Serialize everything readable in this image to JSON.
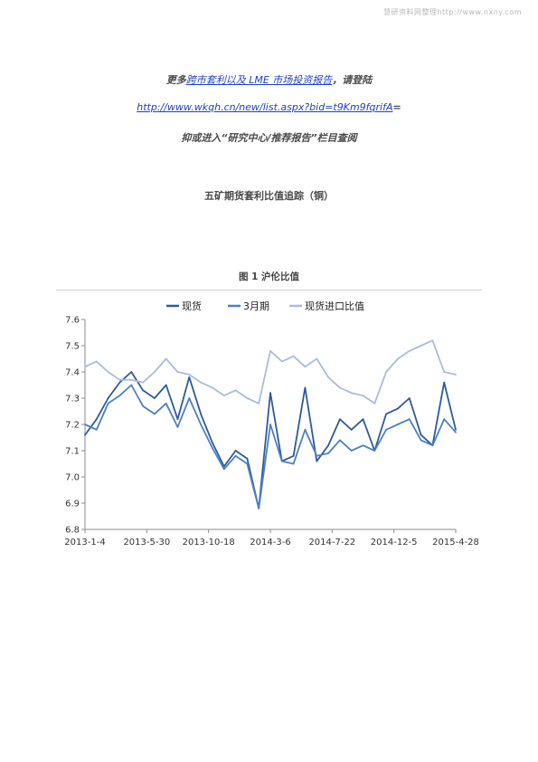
{
  "watermark": "慧研资料网整理http://www.nxny.com",
  "promo": {
    "line1_prefix": "更多",
    "line1_link": "跨市套利以及 LME 市场投资报告",
    "line1_suffix": "，请登陆",
    "line2_link": "http://www.wkqh.cn/new/list.aspx?bid=t9Km9fqrifA",
    "line2_suffix": "=",
    "line3": "抑或进入“研究中心/推荐报告”栏目查阅"
  },
  "section_title": "五矿期货套利比值追踪（铜）",
  "figure_caption": "图 1    沪伦比值",
  "colors": {
    "spot": "#2e5a9b",
    "three_month": "#4e7fc4",
    "import_ratio": "#a8bcdc",
    "link": "#1f3fc8"
  },
  "chart_data": {
    "type": "line",
    "title": "",
    "xlabel": "",
    "ylabel": "",
    "ylim": [
      6.8,
      7.6
    ],
    "yticks": [
      "7.6",
      "7.5",
      "7.4",
      "7.3",
      "7.2",
      "7.1",
      "7.0",
      "6.9",
      "6.8"
    ],
    "xticks": [
      "2013-1-4",
      "2013-5-30",
      "2013-10-18",
      "2014-3-6",
      "2014-7-22",
      "2014-12-5",
      "2015-4-28"
    ],
    "legend_position": "top",
    "x": [
      "2013-1-4",
      "2013-2-1",
      "2013-3-1",
      "2013-4-1",
      "2013-5-1",
      "2013-5-30",
      "2013-7-1",
      "2013-8-1",
      "2013-9-2",
      "2013-10-1",
      "2013-10-18",
      "2013-11-15",
      "2013-12-16",
      "2014-1-15",
      "2014-2-14",
      "2014-3-6",
      "2014-3-20",
      "2014-4-15",
      "2014-5-15",
      "2014-6-16",
      "2014-7-22",
      "2014-8-20",
      "2014-9-19",
      "2014-10-20",
      "2014-11-18",
      "2014-12-5",
      "2015-1-5",
      "2015-2-2",
      "2015-3-2",
      "2015-3-16",
      "2015-4-1",
      "2015-4-15",
      "2015-4-28"
    ],
    "series": [
      {
        "name": "现货",
        "values": [
          7.16,
          7.22,
          7.3,
          7.36,
          7.4,
          7.33,
          7.3,
          7.35,
          7.22,
          7.38,
          7.24,
          7.13,
          7.04,
          7.1,
          7.07,
          6.88,
          7.32,
          7.06,
          7.08,
          7.34,
          7.06,
          7.12,
          7.22,
          7.18,
          7.22,
          7.1,
          7.24,
          7.26,
          7.3,
          7.16,
          7.12,
          7.36,
          7.18
        ]
      },
      {
        "name": "3月期",
        "values": [
          7.2,
          7.18,
          7.28,
          7.31,
          7.35,
          7.27,
          7.24,
          7.28,
          7.19,
          7.3,
          7.2,
          7.11,
          7.03,
          7.08,
          7.05,
          6.88,
          7.2,
          7.06,
          7.05,
          7.18,
          7.08,
          7.09,
          7.14,
          7.1,
          7.12,
          7.1,
          7.18,
          7.2,
          7.22,
          7.14,
          7.12,
          7.22,
          7.17
        ]
      },
      {
        "name": "现货进口比值",
        "values": [
          7.42,
          7.44,
          7.4,
          7.37,
          7.37,
          7.36,
          7.4,
          7.45,
          7.4,
          7.39,
          7.36,
          7.34,
          7.31,
          7.33,
          7.3,
          7.28,
          7.48,
          7.44,
          7.46,
          7.42,
          7.45,
          7.38,
          7.34,
          7.32,
          7.31,
          7.28,
          7.4,
          7.45,
          7.48,
          7.5,
          7.52,
          7.4,
          7.39
        ]
      }
    ]
  }
}
